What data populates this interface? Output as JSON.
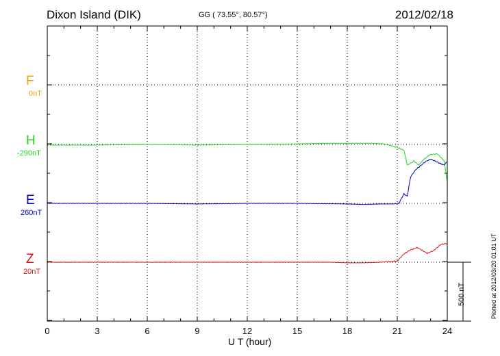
{
  "header": {
    "station": "Dixon Island (DIK)",
    "coords": "GG ( 73.55°,  80.57°)",
    "date": "2012/02/18"
  },
  "plotted_note": "Plotted at 2012/03/20 01:01  UT",
  "scale_label": "500 nT",
  "components": [
    {
      "letter": "F",
      "baseline": "0nT",
      "color": "#f5a400"
    },
    {
      "letter": "H",
      "baseline": "-290nT",
      "color": "#1ed21e"
    },
    {
      "letter": "E",
      "baseline": "260nT",
      "color": "#0000cc"
    },
    {
      "letter": "Z",
      "baseline": "20nT",
      "color": "#e01010"
    }
  ],
  "chart_data": {
    "type": "line",
    "title": "Dixon Island (DIK)",
    "xlabel": "U T (hour)",
    "xlim": [
      0,
      24
    ],
    "xticks": [
      "0",
      "3",
      "6",
      "9",
      "12",
      "15",
      "18",
      "21",
      "24"
    ],
    "units": "nT",
    "series": [
      {
        "name": "H",
        "baseline_nT": -290,
        "x": [
          0,
          3,
          6,
          9,
          12,
          15,
          17,
          18,
          19.5,
          20.2,
          21,
          21.4,
          21.6,
          21.8,
          22.0,
          22.3,
          22.6,
          23.0,
          23.4,
          23.8,
          24
        ],
        "values": [
          -5,
          -5,
          0,
          -5,
          0,
          5,
          10,
          10,
          10,
          5,
          -25,
          -50,
          -175,
          -160,
          -140,
          -175,
          -125,
          -85,
          -80,
          -135,
          -315
        ]
      },
      {
        "name": "E",
        "baseline_nT": 260,
        "x": [
          0,
          3,
          6,
          9,
          12,
          15,
          18,
          19,
          20,
          20.8,
          21.1,
          21.4,
          21.6,
          21.8,
          22.1,
          22.4,
          22.7,
          23.0,
          23.4,
          23.8,
          24
        ],
        "values": [
          0,
          0,
          0,
          -5,
          0,
          0,
          -5,
          -10,
          -5,
          -5,
          0,
          80,
          60,
          225,
          285,
          320,
          355,
          375,
          350,
          325,
          355
        ]
      },
      {
        "name": "Z",
        "baseline_nT": 20,
        "x": [
          0,
          3,
          6,
          9,
          12,
          15,
          17,
          18,
          19,
          20,
          21,
          21.4,
          21.8,
          22.2,
          22.5,
          22.8,
          23.2,
          23.6,
          24
        ],
        "values": [
          0,
          0,
          0,
          0,
          0,
          0,
          0,
          -5,
          -5,
          0,
          10,
          70,
          105,
          125,
          100,
          75,
          100,
          150,
          160
        ]
      }
    ],
    "scale_bar_nT": 500
  }
}
